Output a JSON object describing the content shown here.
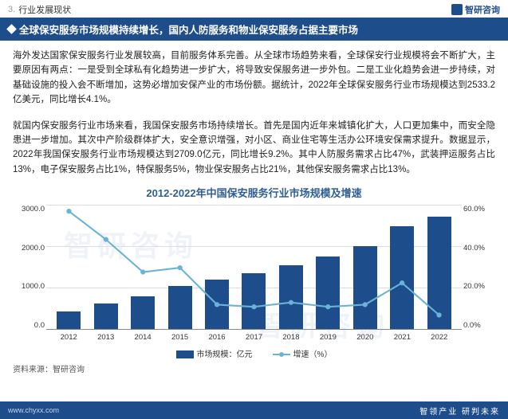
{
  "header": {
    "section_num": "3.",
    "section_title": "行业发展现状",
    "brand": "智研咨询"
  },
  "subheader": {
    "text": "全球保安服务市场规模持续增长，国内人防服务和物业保安服务占据主要市场"
  },
  "para1": "海外发达国家保安服务行业发展较高，目前服务体系完善。从全球市场趋势来看，全球保安行业规模将会不断扩大，主要原因有两点：一是受到全球私有化趋势进一步扩大，将导致安保服务进一步外包。二是工业化趋势会进一步持续，对基础设施的投入会不断增加，这势必增加安保产业的市场份额。据统计，2022年全球保安服务行业市场规模达到2533.2亿美元，同比增长4.1%。",
  "para2": "就国内保安服务行业市场来看，我国保安服务市场持续增长。首先是国内近年来城镇化扩大，人口更加集中，而安全隐患进一步增加。其次中产阶级群体扩大，安全意识增强，对小区、商业住宅等生活办公环境安保需求提升。数据显示，2022年我国保安服务行业市场规模达到2709.0亿元，同比增长9.2%。其中人防服务需求占比47%，武装押运服务占比13%，电子保安服务占比1%，特保服务5%，物业保安服务占比21%，其他保安服务需求占比13%。",
  "chart": {
    "title": "2012-2022年中国保安服务行业市场规模及增速",
    "categories": [
      "2012",
      "2013",
      "2014",
      "2015",
      "2016",
      "2017",
      "2018",
      "2019",
      "2020",
      "2021",
      "2022"
    ],
    "bar_values": [
      430,
      620,
      800,
      1050,
      1200,
      1350,
      1550,
      1750,
      2000,
      2480,
      2709
    ],
    "line_values": [
      57,
      44,
      29,
      31,
      14,
      13,
      15,
      13,
      14,
      24,
      9.2
    ],
    "y_left": {
      "max": 3000,
      "ticks": [
        "3000.0",
        "2000.0",
        "1000.0",
        "0.0"
      ]
    },
    "y_right": {
      "max": 60,
      "ticks": [
        "60.0%",
        "40.0%",
        "20.0%",
        "0.0%"
      ]
    },
    "bar_color": "#1e4d8b",
    "line_color": "#6bb3d6",
    "legend": {
      "bar": "市场规模：亿元",
      "line": "增速（%）"
    }
  },
  "source": "资料来源：智研咨询",
  "footer": {
    "host": "www.chyxx.com",
    "slogan": "智领产业 研判未来"
  },
  "watermark": "智研咨询"
}
